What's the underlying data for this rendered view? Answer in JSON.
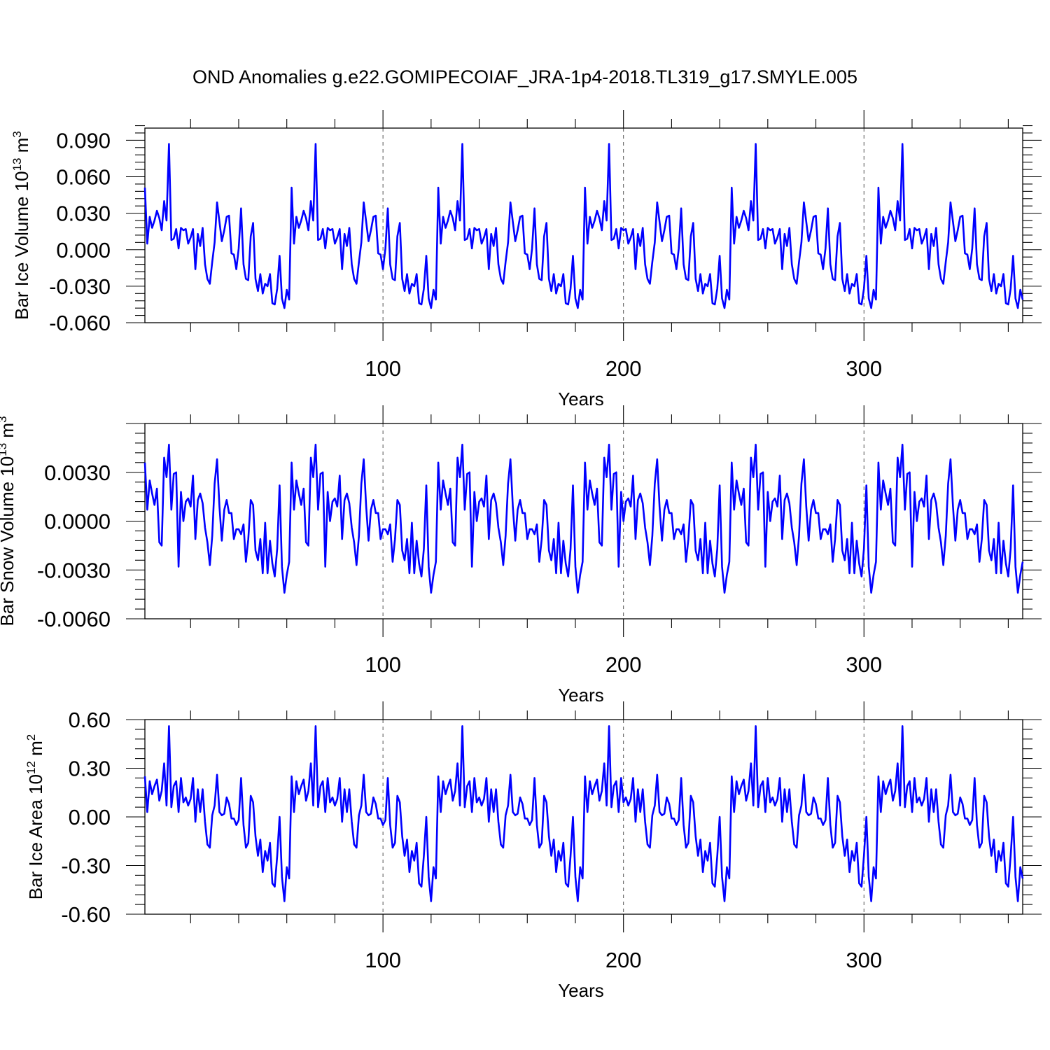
{
  "title": "OND Anomalies g.e22.GOMIPECOIAF_JRA-1p4-2018.TL319_g17.SMYLE.005",
  "line_color": "#0000FF",
  "chart_data": [
    {
      "type": "line",
      "ylabel": "Bar Ice Volume 10",
      "ylabel_sup": "13",
      "ylabel_unit": " m",
      "ylabel_unit_sup": "3",
      "xlabel": "Years",
      "xlim": [
        1,
        366
      ],
      "ylim": [
        -0.06,
        0.1
      ],
      "xticks": [
        100,
        200,
        300
      ],
      "xtick_labels": [
        "100",
        "200",
        "300"
      ],
      "yticks": [
        -0.06,
        -0.03,
        0.0,
        0.03,
        0.06,
        0.09
      ],
      "ytick_labels": [
        "-0.060",
        "-0.030",
        "0.000",
        "0.030",
        "0.060",
        "0.090"
      ],
      "reference_lines_x": [
        100,
        200,
        300
      ],
      "cycle": 61,
      "cycle_values": [
        0.051,
        0.005,
        0.027,
        0.018,
        0.024,
        0.032,
        0.026,
        0.016,
        0.04,
        0.024,
        0.087,
        0.008,
        0.009,
        0.017,
        0.001,
        0.018,
        0.016,
        0.017,
        0.005,
        0.01,
        0.017,
        -0.016,
        0.013,
        0.003,
        0.018,
        -0.012,
        -0.024,
        -0.028,
        -0.01,
        0.006,
        0.039,
        0.023,
        0.007,
        0.016,
        0.027,
        0.028,
        -0.003,
        -0.004,
        -0.016,
        0.001,
        0.034,
        -0.012,
        -0.024,
        -0.025,
        0.011,
        0.022,
        -0.024,
        -0.034,
        -0.02,
        -0.036,
        -0.028,
        -0.03,
        -0.02,
        -0.044,
        -0.045,
        -0.032,
        -0.005,
        -0.04,
        -0.048,
        -0.033,
        -0.041
      ]
    },
    {
      "type": "line",
      "ylabel": "Bar Snow Volume 10",
      "ylabel_sup": "13",
      "ylabel_unit": " m",
      "ylabel_unit_sup": "3",
      "xlabel": "Years",
      "xlim": [
        1,
        366
      ],
      "ylim": [
        -0.006,
        0.006
      ],
      "xticks": [
        100,
        200,
        300
      ],
      "xtick_labels": [
        "100",
        "200",
        "300"
      ],
      "yticks": [
        -0.006,
        -0.003,
        0.0,
        0.003
      ],
      "ytick_labels": [
        "-0.0060",
        "-0.0030",
        "0.0000",
        "0.0030"
      ],
      "reference_lines_x": [
        100,
        200,
        300
      ],
      "cycle": 61,
      "cycle_values": [
        0.0036,
        0.0007,
        0.0025,
        0.0017,
        0.001,
        0.002,
        -0.0013,
        -0.0015,
        0.0039,
        0.0027,
        0.0047,
        0.0007,
        0.0029,
        0.003,
        -0.0028,
        0.0018,
        0.0,
        0.0012,
        0.0014,
        0.0009,
        0.0028,
        -0.0011,
        0.0013,
        0.0017,
        0.0011,
        -0.0004,
        -0.0013,
        -0.0027,
        -0.0009,
        0.0023,
        0.0038,
        0.0009,
        -0.0012,
        0.0007,
        0.0013,
        0.0005,
        0.0005,
        -0.0011,
        -0.0005,
        -0.0005,
        -0.0008,
        -0.0002,
        -0.0025,
        -0.0011,
        0.0013,
        0.001,
        -0.0018,
        -0.0024,
        -0.0011,
        -0.0032,
        -0.0001,
        -0.0032,
        -0.0012,
        -0.0026,
        -0.0034,
        -0.0017,
        0.0022,
        -0.0028,
        -0.0044,
        -0.0033,
        -0.0025
      ]
    },
    {
      "type": "line",
      "ylabel": "Bar Ice Area 10",
      "ylabel_sup": "12",
      "ylabel_unit": " m",
      "ylabel_unit_sup": "2",
      "xlabel": "Years",
      "xlim": [
        1,
        366
      ],
      "ylim": [
        -0.6,
        0.6
      ],
      "xticks": [
        100,
        200,
        300
      ],
      "xtick_labels": [
        "100",
        "200",
        "300"
      ],
      "yticks": [
        -0.6,
        -0.3,
        0.0,
        0.3,
        0.6
      ],
      "ytick_labels": [
        "-0.60",
        "-0.30",
        "0.00",
        "0.30",
        "0.60"
      ],
      "reference_lines_x": [
        100,
        200,
        300
      ],
      "cycle": 61,
      "cycle_values": [
        0.25,
        0.03,
        0.22,
        0.14,
        0.19,
        0.23,
        0.1,
        0.16,
        0.33,
        0.07,
        0.56,
        0.06,
        0.19,
        0.22,
        0.03,
        0.24,
        0.09,
        0.12,
        0.07,
        0.11,
        0.24,
        -0.03,
        0.17,
        0.03,
        0.17,
        -0.03,
        -0.17,
        -0.19,
        0.01,
        0.07,
        0.26,
        0.03,
        0.01,
        0.02,
        0.12,
        0.08,
        -0.01,
        -0.01,
        -0.05,
        -0.02,
        0.24,
        -0.05,
        -0.19,
        -0.16,
        0.13,
        0.09,
        -0.12,
        -0.24,
        -0.14,
        -0.34,
        -0.21,
        -0.27,
        -0.16,
        -0.41,
        -0.43,
        -0.24,
        0.0,
        -0.37,
        -0.52,
        -0.31,
        -0.38
      ]
    }
  ]
}
